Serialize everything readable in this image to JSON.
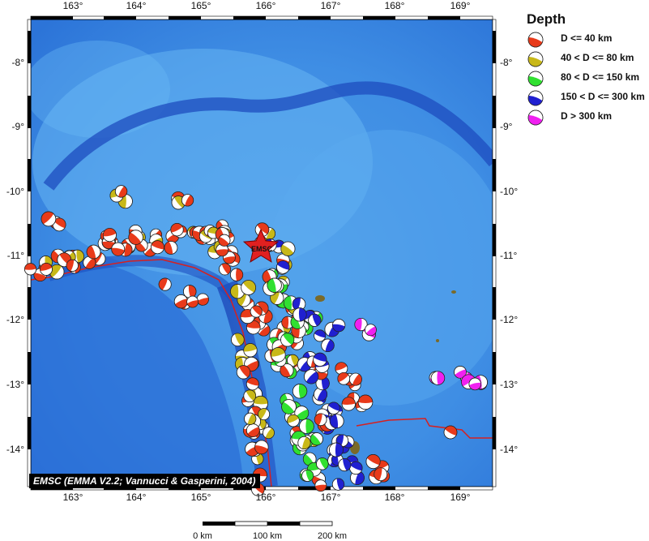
{
  "map": {
    "lon_ticks": [
      "163°",
      "164°",
      "165°",
      "166°",
      "167°",
      "168°",
      "169°"
    ],
    "lat_ticks": [
      "-8°",
      "-9°",
      "-10°",
      "-11°",
      "-12°",
      "-13°",
      "-14°"
    ],
    "epicenter_label": "EMSC",
    "credit": "EMSC (EMMA V2.2; Vannucci & Gasperini, 2004)",
    "colors": {
      "sea_dark": "#1f5fd0",
      "sea_light": "#5fb0f0",
      "trench": "#1030a0",
      "plate_boundary": "#d62020",
      "epicenter": "#e02020"
    }
  },
  "legend": {
    "title": "Depth",
    "items": [
      {
        "label": "D <= 40 km",
        "color": "#e83a1a"
      },
      {
        "label": "40 < D <= 80 km",
        "color": "#c8b818"
      },
      {
        "label": "80 < D <= 150 km",
        "color": "#30e030"
      },
      {
        "label": "150 < D <= 300 km",
        "color": "#2020d0"
      },
      {
        "label": "D > 300 km",
        "color": "#f020f0"
      }
    ]
  },
  "scale_bar": {
    "labels": [
      "0 km",
      "100 km",
      "200 km"
    ]
  }
}
